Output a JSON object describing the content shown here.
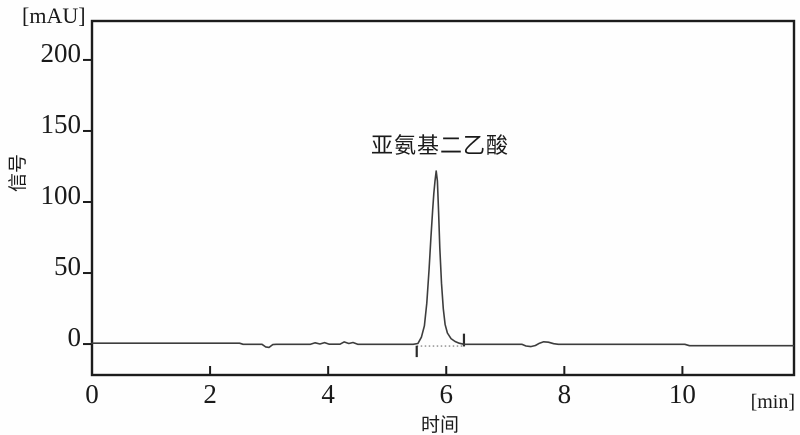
{
  "figure": {
    "y_unit": "[mAU]",
    "y_axis_label": "信号",
    "x_axis_label": "时间",
    "x_unit": "[min]",
    "annotation": "亚氨基二乙酸"
  },
  "chart_data": {
    "type": "line",
    "title": "",
    "xlabel": "时间 [min]",
    "ylabel": "信号 [mAU]",
    "xlim": [
      0,
      11.89
    ],
    "ylim": [
      -24.6,
      224.6
    ],
    "x_ticks": [
      0,
      2,
      4,
      6,
      8,
      10
    ],
    "y_ticks": [
      0,
      50,
      100,
      150,
      200
    ],
    "grid": false,
    "legend": false,
    "frame_color": "#1c1c1c",
    "line_color": "#3d3d3d",
    "integration_color": "#9a9a9a",
    "peak": {
      "label": "亚氨基二乙酸",
      "retention_time_min": 5.83,
      "height_mau": 119,
      "label_pos": [
        5.88,
        137
      ]
    },
    "integration": {
      "dotted_baseline": {
        "t_start": 5.5,
        "t_end": 6.28,
        "v": -4.2
      },
      "start_tick": {
        "t": 5.5,
        "v_from": -12,
        "v_to": -4
      },
      "end_tick": {
        "t": 6.3,
        "v_from": -4.5,
        "v_to": 4.5
      }
    },
    "series": [
      {
        "name": "signal",
        "points": [
          [
            0.0,
            -2.2
          ],
          [
            2.5,
            -2.2
          ],
          [
            2.56,
            -3.0
          ],
          [
            2.88,
            -3.0
          ],
          [
            2.94,
            -4.8
          ],
          [
            3.0,
            -5.2
          ],
          [
            3.06,
            -3.2
          ],
          [
            3.12,
            -3.0
          ],
          [
            3.7,
            -3.0
          ],
          [
            3.78,
            -1.9
          ],
          [
            3.86,
            -2.8
          ],
          [
            3.94,
            -1.8
          ],
          [
            4.02,
            -2.9
          ],
          [
            4.2,
            -2.9
          ],
          [
            4.27,
            -1.3
          ],
          [
            4.35,
            -2.4
          ],
          [
            4.42,
            -1.7
          ],
          [
            4.5,
            -3.0
          ],
          [
            5.44,
            -3.0
          ],
          [
            5.52,
            -2.4
          ],
          [
            5.58,
            2
          ],
          [
            5.63,
            10
          ],
          [
            5.67,
            26
          ],
          [
            5.71,
            50
          ],
          [
            5.74,
            72
          ],
          [
            5.77,
            92
          ],
          [
            5.79,
            103
          ],
          [
            5.81,
            112
          ],
          [
            5.83,
            119
          ],
          [
            5.85,
            112
          ],
          [
            5.87,
            90
          ],
          [
            5.89,
            65
          ],
          [
            5.92,
            40
          ],
          [
            5.95,
            22
          ],
          [
            5.98,
            11
          ],
          [
            6.02,
            5
          ],
          [
            6.08,
            1
          ],
          [
            6.15,
            -1.0
          ],
          [
            6.22,
            -2.2
          ],
          [
            6.3,
            -3.0
          ],
          [
            7.28,
            -3.0
          ],
          [
            7.35,
            -4.2
          ],
          [
            7.43,
            -4.6
          ],
          [
            7.51,
            -3.8
          ],
          [
            7.58,
            -2.2
          ],
          [
            7.65,
            -1.2
          ],
          [
            7.73,
            -1.5
          ],
          [
            7.82,
            -2.6
          ],
          [
            7.9,
            -3.0
          ],
          [
            10.04,
            -3.0
          ],
          [
            10.12,
            -4.0
          ],
          [
            11.88,
            -4.0
          ]
        ]
      }
    ]
  }
}
